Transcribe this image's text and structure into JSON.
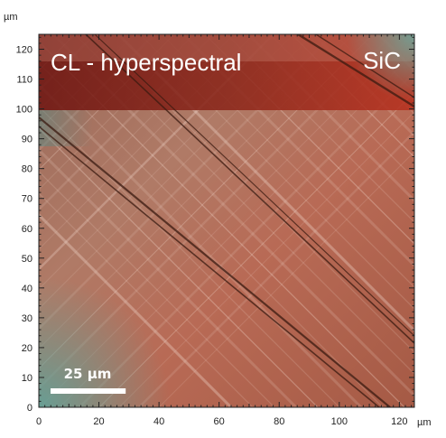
{
  "image": {
    "title": "CL - hyperspectral",
    "material": "SiC",
    "scale_bar_label": "25 µm",
    "scale_bar_length_um": 25,
    "y_unit": "µm",
    "x_unit": "µm",
    "x_ticks": [
      "0",
      "20",
      "40",
      "60",
      "80",
      "100",
      "120"
    ],
    "y_ticks": [
      "0",
      "10",
      "20",
      "30",
      "40",
      "50",
      "60",
      "70",
      "80",
      "90",
      "100",
      "110",
      "120"
    ],
    "x_range_um": [
      0,
      125
    ],
    "y_range_um": [
      0,
      125
    ],
    "colors": {
      "base": "#a86a55",
      "band_top": "#7a1a14",
      "streak": "#f2d8cc",
      "defect_line": "#3a1a10",
      "teal_corner": "#5f9a94"
    }
  }
}
